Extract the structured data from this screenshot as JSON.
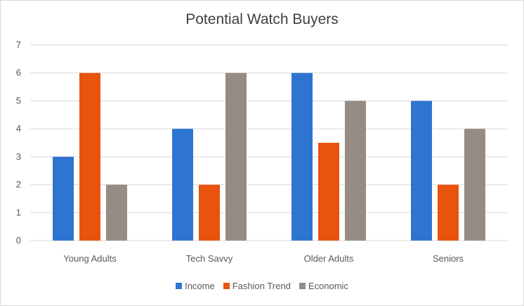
{
  "chart_data": {
    "type": "bar",
    "title": "Potential Watch Buyers",
    "xlabel": "",
    "ylabel": "",
    "categories": [
      "Young Adults",
      "Tech Savvy",
      "Older Adults",
      "Seniors"
    ],
    "series": [
      {
        "name": "Income",
        "color": "#2e75d1",
        "values": [
          3,
          4,
          6,
          5
        ]
      },
      {
        "name": "Fashion Trend",
        "color": "#e8530e",
        "values": [
          6,
          2,
          3.5,
          2
        ]
      },
      {
        "name": "Economic",
        "color": "#958c85",
        "values": [
          2,
          6,
          5,
          4
        ]
      }
    ],
    "ylim": [
      0,
      7
    ],
    "yticks": [
      "0",
      "1",
      "2",
      "3",
      "4",
      "5",
      "6",
      "7"
    ],
    "grid": true,
    "legend_position": "bottom"
  }
}
